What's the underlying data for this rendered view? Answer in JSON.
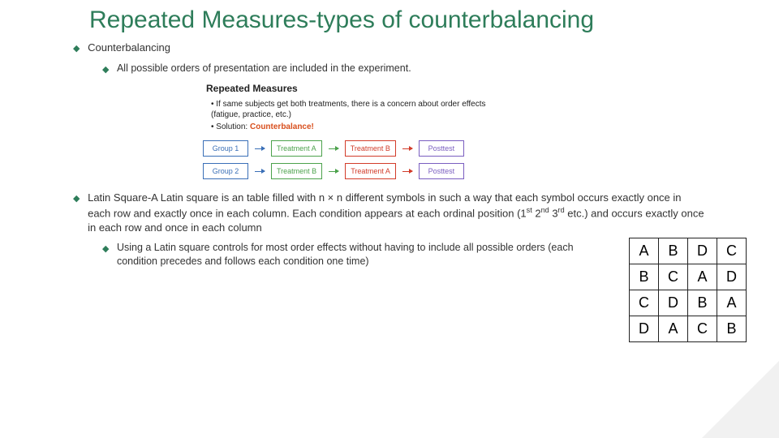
{
  "title": "Repeated Measures-types of counterbalancing",
  "counterbalancing_label": "Counterbalancing",
  "all_possible": "All possible orders of presentation are included in the experiment.",
  "diagram": {
    "title": "Repeated Measures",
    "bullet1": "If same subjects get both treatments, there is a concern about order effects (fatigue, practice, etc.)",
    "bullet2_pre": "Solution: ",
    "bullet2_word": "Counterbalance!",
    "colors": {
      "blue": "#3a6fb7",
      "green": "#4ca24c",
      "red": "#d23c2a",
      "purple": "#7a5ec0"
    },
    "row1": [
      "Group 1",
      "Treatment A",
      "Treatment B",
      "Posttest"
    ],
    "row2": [
      "Group 2",
      "Treatment B",
      "Treatment A",
      "Posttest"
    ]
  },
  "latin_text_pre": "Latin Square-A Latin square is an table filled with n × n different symbols in such a way that each symbol occurs exactly once in each row and exactly once in each column.  Each condition appears at each ordinal position (1",
  "latin_text_sup1": "st",
  "latin_text_mid1": " 2",
  "latin_text_sup2": "nd",
  "latin_text_mid2": " 3",
  "latin_text_sup3": "rd",
  "latin_text_post": " etc.) and occurs exactly once in each row and once in each column",
  "latin_sub": "Using a Latin square controls for most order effects without having to include all possible orders (each condition precedes and follows each condition one time)",
  "latin_square": [
    [
      "A",
      "B",
      "D",
      "C"
    ],
    [
      "B",
      "C",
      "A",
      "D"
    ],
    [
      "C",
      "D",
      "B",
      "A"
    ],
    [
      "D",
      "A",
      "C",
      "B"
    ]
  ],
  "bullet_glyph": "◆"
}
